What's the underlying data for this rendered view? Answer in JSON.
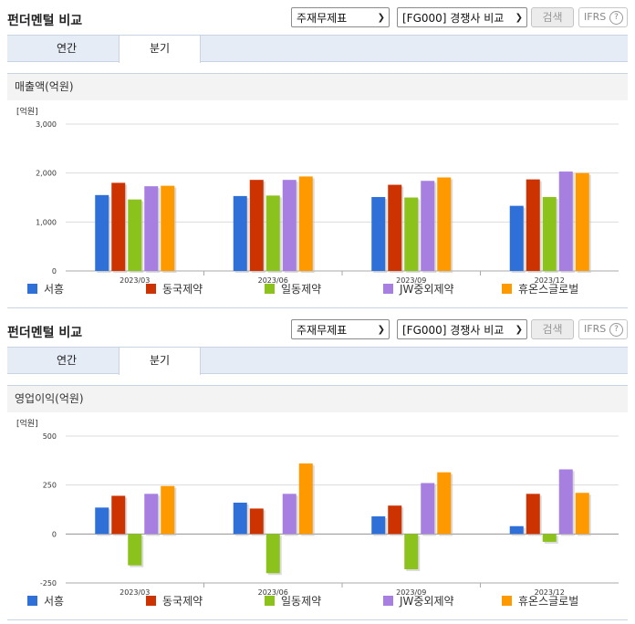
{
  "panels": [
    {
      "title": "펀더멘털 비교",
      "statement_select": "주재무제표",
      "compare_select": "[FG000] 경쟁사 비교",
      "search_label": "검색",
      "ifrs_label": "IFRS",
      "help_glyph": "?",
      "tabs": [
        {
          "label": "연간",
          "active": false
        },
        {
          "label": "분기",
          "active": true
        }
      ],
      "chart_title": "매출액(억원)",
      "chart_data": {
        "type": "bar",
        "unit": "[억원]",
        "categories": [
          "2023/03",
          "2023/06",
          "2023/09",
          "2023/12"
        ],
        "ylim": [
          0,
          3000
        ],
        "yticks": [
          0,
          1000,
          2000,
          3000
        ],
        "ytick_labels": [
          "0",
          "1,000",
          "2,000",
          "3,000"
        ],
        "series": [
          {
            "name": "서흥",
            "color": "#2e6fd8",
            "values": [
              1550,
              1530,
              1510,
              1330
            ]
          },
          {
            "name": "동국제약",
            "color": "#cc3300",
            "values": [
              1800,
              1860,
              1760,
              1870
            ]
          },
          {
            "name": "일동제약",
            "color": "#8cc21c",
            "values": [
              1460,
              1540,
              1500,
              1510
            ]
          },
          {
            "name": "JW중외제약",
            "color": "#a77fe0",
            "values": [
              1730,
              1860,
              1840,
              2030
            ]
          },
          {
            "name": "휴온스글로벌",
            "color": "#ff9900",
            "values": [
              1740,
              1930,
              1910,
              2000
            ]
          }
        ],
        "legend_position": "bottom",
        "grid": true
      }
    },
    {
      "title": "펀더멘털 비교",
      "statement_select": "주재무제표",
      "compare_select": "[FG000] 경쟁사 비교",
      "search_label": "검색",
      "ifrs_label": "IFRS",
      "help_glyph": "?",
      "tabs": [
        {
          "label": "연간",
          "active": false
        },
        {
          "label": "분기",
          "active": true
        }
      ],
      "chart_title": "영업이익(억원)",
      "chart_data": {
        "type": "bar",
        "unit": "[억원]",
        "categories": [
          "2023/03",
          "2023/06",
          "2023/09",
          "2023/12"
        ],
        "ylim": [
          -250,
          500
        ],
        "yticks": [
          -250,
          0,
          250,
          500
        ],
        "ytick_labels": [
          "-250",
          "0",
          "250",
          "500"
        ],
        "series": [
          {
            "name": "서흥",
            "color": "#2e6fd8",
            "values": [
              135,
              160,
              90,
              40
            ]
          },
          {
            "name": "동국제약",
            "color": "#cc3300",
            "values": [
              195,
              130,
              145,
              205
            ]
          },
          {
            "name": "일동제약",
            "color": "#8cc21c",
            "values": [
              -160,
              -200,
              -180,
              -40
            ]
          },
          {
            "name": "JW중외제약",
            "color": "#a77fe0",
            "values": [
              205,
              205,
              260,
              330
            ]
          },
          {
            "name": "휴온스글로벌",
            "color": "#ff9900",
            "values": [
              245,
              360,
              315,
              210
            ]
          }
        ],
        "legend_position": "bottom",
        "grid": true
      }
    }
  ]
}
